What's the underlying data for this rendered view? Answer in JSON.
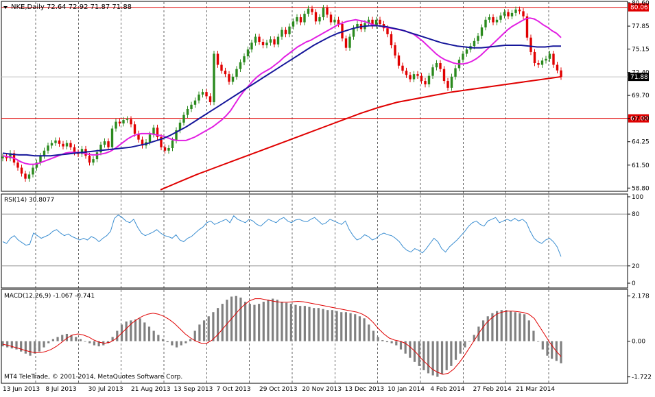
{
  "header": {
    "symbol": "NKE,Daily",
    "ohlc": "72.64 72.92 71.87 71.88"
  },
  "footer": {
    "copyright": "MT4 TeleTrade, © 2001-2014, MetaQuotes Software Corp."
  },
  "colors": {
    "bull_candle": "#2b8a1e",
    "bear_candle": "#e00000",
    "ma_fast": "#e21fe2",
    "ma_mid": "#15169a",
    "ma_slow": "#e00000",
    "hline": "#e00000",
    "rsi_line": "#3b8ed1",
    "macd_hist": "#808080",
    "macd_signal": "#e00000"
  },
  "chart_data": [
    {
      "type": "candlestick",
      "panel": "price",
      "ylim": [
        58.5,
        80.6
      ],
      "y_ticks": [
        "80.60",
        "77.85",
        "75.15",
        "72.40",
        "69.70",
        "67.00",
        "64.25",
        "61.50",
        "58.80"
      ],
      "x_ticks": [
        "13 Jun 2013",
        "8 Jul 2013",
        "30 Jul 2013",
        "21 Aug 2013",
        "13 Sep 2013",
        "7 Oct 2013",
        "29 Oct 2013",
        "20 Nov 2013",
        "13 Dec 2013",
        "10 Jan 2014",
        "4 Feb 2014",
        "27 Feb 2014",
        "21 Mar 2014"
      ],
      "horizontal_lines": [
        {
          "label": "80.06",
          "value": 80.06
        },
        {
          "label": "67.00",
          "value": 67.0
        }
      ],
      "current_price": {
        "label": "71.88",
        "value": 71.88
      },
      "closes": [
        62.5,
        62.3,
        62.9,
        61.8,
        61.2,
        60.5,
        59.9,
        60.4,
        61.2,
        61.8,
        62.6,
        63.2,
        63.8,
        64.1,
        64.4,
        64.0,
        63.7,
        64.1,
        63.6,
        63.0,
        62.8,
        63.4,
        62.6,
        61.8,
        62.2,
        63.0,
        63.9,
        64.3,
        63.6,
        65.8,
        66.6,
        66.4,
        66.8,
        66.9,
        66.3,
        65.2,
        64.5,
        63.8,
        64.2,
        65.1,
        65.9,
        64.8,
        63.6,
        63.2,
        63.5,
        64.4,
        65.6,
        66.5,
        67.4,
        68.1,
        68.6,
        69.1,
        69.8,
        70.1,
        69.6,
        68.9,
        74.6,
        73.3,
        72.6,
        72.2,
        71.3,
        71.9,
        72.8,
        73.6,
        74.3,
        75.1,
        75.9,
        76.6,
        76.0,
        75.6,
        75.9,
        76.3,
        75.7,
        76.6,
        77.4,
        76.9,
        77.8,
        78.4,
        78.9,
        78.3,
        79.3,
        79.9,
        79.5,
        78.4,
        78.9,
        80.0,
        79.2,
        78.3,
        78.6,
        78.1,
        76.4,
        75.3,
        76.6,
        77.6,
        78.1,
        77.5,
        78.2,
        78.6,
        77.9,
        78.6,
        78.1,
        77.6,
        76.9,
        75.6,
        74.4,
        73.2,
        72.6,
        72.1,
        71.6,
        72.2,
        72.0,
        71.4,
        71.0,
        72.0,
        73.0,
        73.5,
        72.8,
        71.4,
        70.6,
        71.9,
        72.9,
        73.9,
        74.6,
        75.1,
        75.5,
        76.1,
        76.7,
        77.7,
        78.6,
        78.9,
        78.3,
        78.6,
        79.1,
        79.5,
        79.0,
        79.4,
        79.8,
        79.6,
        79.0,
        76.5,
        74.8,
        73.5,
        73.3,
        73.8,
        74.0,
        74.6,
        73.3,
        72.64,
        71.88
      ],
      "moving_averages": [
        {
          "name": "fast",
          "values": [
            62.6,
            62.5,
            62.4,
            62.2,
            61.9,
            61.7,
            61.6,
            61.6,
            61.7,
            61.9,
            62.1,
            62.3,
            62.5,
            62.7,
            62.9,
            63.0,
            63.0,
            63.0,
            62.9,
            62.8,
            62.7,
            62.7,
            62.8,
            62.9,
            63.1,
            63.4,
            63.8,
            64.2,
            64.6,
            64.9,
            65.1,
            65.2,
            65.2,
            65.2,
            65.1,
            65.0,
            64.9,
            64.7,
            64.5,
            64.4,
            64.4,
            64.4,
            64.6,
            64.8,
            65.1,
            65.4,
            65.7,
            66.0,
            66.4,
            66.8,
            67.3,
            67.9,
            68.7,
            69.5,
            70.2,
            70.8,
            71.4,
            71.9,
            72.3,
            72.6,
            72.9,
            73.3,
            73.7,
            74.2,
            74.6,
            75.0,
            75.4,
            75.7,
            76.0,
            76.2,
            76.5,
            76.8,
            77.1,
            77.4,
            77.7,
            78.0,
            78.2,
            78.4,
            78.5,
            78.6,
            78.5,
            78.4,
            78.2,
            78.0,
            77.9,
            77.8,
            77.7,
            77.6,
            77.5,
            77.4,
            77.3,
            77.1,
            76.9,
            76.5,
            76.1,
            75.6,
            75.1,
            74.6,
            74.2,
            73.9,
            73.7,
            73.5,
            73.4,
            73.4,
            73.5,
            73.7,
            74.0,
            74.4,
            74.9,
            75.4,
            75.9,
            76.4,
            76.9,
            77.4,
            77.8,
            78.1,
            78.4,
            78.7,
            78.8,
            78.7,
            78.4,
            78.0,
            77.7,
            77.3,
            77.0,
            76.5
          ],
          "x_start": 0
        },
        {
          "name": "mid",
          "values": [
            62.9,
            62.8,
            62.7,
            62.7,
            62.6,
            62.6,
            62.6,
            62.7,
            62.8,
            62.9,
            63.0,
            63.1,
            63.2,
            63.3,
            63.4,
            63.5,
            63.6,
            63.8,
            64.0,
            64.3,
            64.6,
            65.0,
            65.5,
            66.0,
            66.6,
            67.2,
            67.8,
            68.4,
            69.0,
            69.6,
            70.2,
            70.8,
            71.4,
            72.0,
            72.6,
            73.2,
            73.8,
            74.4,
            75.0,
            75.6,
            76.1,
            76.6,
            77.0,
            77.3,
            77.6,
            77.8,
            77.9,
            77.9,
            77.8,
            77.6,
            77.4,
            77.1,
            76.8,
            76.5,
            76.2,
            75.9,
            75.7,
            75.5,
            75.4,
            75.3,
            75.3,
            75.4,
            75.5,
            75.6,
            75.6,
            75.6,
            75.5,
            75.4,
            75.4,
            75.5,
            75.5
          ],
          "x_start": 0
        },
        {
          "name": "slow",
          "values": [
            58.6,
            59.5,
            60.4,
            61.2,
            62.0,
            62.8,
            63.6,
            64.4,
            65.2,
            66.0,
            66.8,
            67.6,
            68.3,
            68.9,
            69.3,
            69.7,
            70.1,
            70.4,
            70.7,
            71.0,
            71.3,
            71.6,
            71.9
          ],
          "x_start": 0
        }
      ]
    },
    {
      "type": "line",
      "panel": "rsi",
      "title": "RSI(14) 30.8077",
      "ylim": [
        0,
        100
      ],
      "y_ticks": [
        "100",
        "80",
        "20",
        "0"
      ],
      "levels": [
        80,
        20
      ],
      "values": [
        48,
        46,
        52,
        55,
        50,
        47,
        44,
        45,
        58,
        55,
        52,
        54,
        56,
        60,
        62,
        58,
        55,
        57,
        54,
        52,
        50,
        52,
        50,
        54,
        52,
        48,
        52,
        55,
        60,
        75,
        79,
        76,
        72,
        70,
        74,
        65,
        58,
        55,
        57,
        59,
        62,
        58,
        55,
        54,
        52,
        56,
        50,
        48,
        52,
        54,
        58,
        62,
        65,
        70,
        72,
        68,
        70,
        72,
        74,
        70,
        78,
        74,
        72,
        70,
        74,
        72,
        68,
        66,
        70,
        74,
        72,
        70,
        74,
        76,
        72,
        70,
        73,
        74,
        72,
        71,
        74,
        76,
        72,
        68,
        70,
        74,
        72,
        70,
        68,
        72,
        62,
        55,
        50,
        52,
        56,
        54,
        50,
        52,
        56,
        58,
        56,
        55,
        52,
        48,
        42,
        38,
        36,
        40,
        38,
        35,
        40,
        46,
        52,
        48,
        40,
        36,
        42,
        46,
        50,
        55,
        60,
        66,
        70,
        72,
        68,
        66,
        72,
        74,
        76,
        70,
        72,
        74,
        72,
        75,
        72,
        74,
        70,
        60,
        52,
        48,
        46,
        50,
        52,
        48,
        42,
        30.8
      ]
    },
    {
      "type": "bar+line",
      "panel": "macd",
      "title": "MACD(12,26,9) -1.067 -0.741",
      "ylim": [
        -1.8,
        2.3
      ],
      "y_ticks": [
        "2.178",
        "0.00",
        "-1.722"
      ],
      "histogram": [
        -0.25,
        -0.3,
        -0.35,
        -0.4,
        -0.5,
        -0.6,
        -0.7,
        -0.6,
        -0.5,
        -0.3,
        -0.1,
        0.1,
        0.2,
        0.3,
        0.35,
        0.3,
        0.2,
        0.1,
        0.0,
        -0.1,
        -0.2,
        -0.25,
        -0.2,
        -0.1,
        0.2,
        0.5,
        0.8,
        0.95,
        1.0,
        1.05,
        1.1,
        0.9,
        0.7,
        0.5,
        0.3,
        0.1,
        -0.05,
        -0.2,
        -0.3,
        -0.2,
        -0.1,
        0.1,
        0.5,
        0.8,
        1.0,
        1.2,
        1.4,
        1.6,
        1.8,
        2.0,
        2.15,
        2.178,
        2.1,
        1.9,
        1.8,
        1.75,
        1.8,
        1.9,
        2.0,
        2.05,
        2.0,
        1.9,
        1.85,
        1.8,
        1.75,
        1.7,
        1.7,
        1.65,
        1.6,
        1.6,
        1.55,
        1.5,
        1.5,
        1.45,
        1.4,
        1.4,
        1.35,
        1.3,
        1.2,
        1.1,
        0.8,
        0.5,
        0.2,
        0.05,
        -0.05,
        -0.1,
        -0.2,
        -0.4,
        -0.6,
        -0.8,
        -1.0,
        -1.2,
        -1.4,
        -1.55,
        -1.65,
        -1.72,
        -1.6,
        -1.4,
        -1.2,
        -0.9,
        -0.6,
        -0.3,
        0.0,
        0.3,
        0.7,
        1.0,
        1.2,
        1.35,
        1.45,
        1.5,
        1.5,
        1.45,
        1.4,
        1.35,
        1.3,
        1.0,
        0.5,
        0.0,
        -0.4,
        -0.7,
        -0.85,
        -0.95,
        -1.067
      ],
      "signal": [
        -0.15,
        -0.2,
        -0.28,
        -0.35,
        -0.43,
        -0.5,
        -0.55,
        -0.55,
        -0.5,
        -0.4,
        -0.25,
        -0.05,
        0.15,
        0.3,
        0.35,
        0.3,
        0.2,
        0.05,
        -0.05,
        -0.1,
        -0.05,
        0.1,
        0.35,
        0.6,
        0.85,
        1.05,
        1.2,
        1.3,
        1.35,
        1.3,
        1.2,
        1.05,
        0.85,
        0.6,
        0.35,
        0.15,
        0.0,
        -0.1,
        -0.1,
        0.05,
        0.3,
        0.6,
        0.9,
        1.2,
        1.5,
        1.75,
        1.95,
        2.05,
        2.05,
        2.0,
        1.95,
        1.9,
        1.88,
        1.88,
        1.9,
        1.92,
        1.9,
        1.85,
        1.8,
        1.75,
        1.7,
        1.65,
        1.6,
        1.55,
        1.5,
        1.45,
        1.4,
        1.3,
        1.15,
        0.9,
        0.6,
        0.35,
        0.15,
        0.05,
        0.0,
        -0.1,
        -0.3,
        -0.55,
        -0.85,
        -1.1,
        -1.35,
        -1.5,
        -1.6,
        -1.55,
        -1.35,
        -1.05,
        -0.7,
        -0.3,
        0.1,
        0.5,
        0.85,
        1.1,
        1.3,
        1.4,
        1.45,
        1.45,
        1.42,
        1.38,
        1.3,
        1.1,
        0.7,
        0.3,
        -0.1,
        -0.45,
        -0.741
      ]
    }
  ]
}
